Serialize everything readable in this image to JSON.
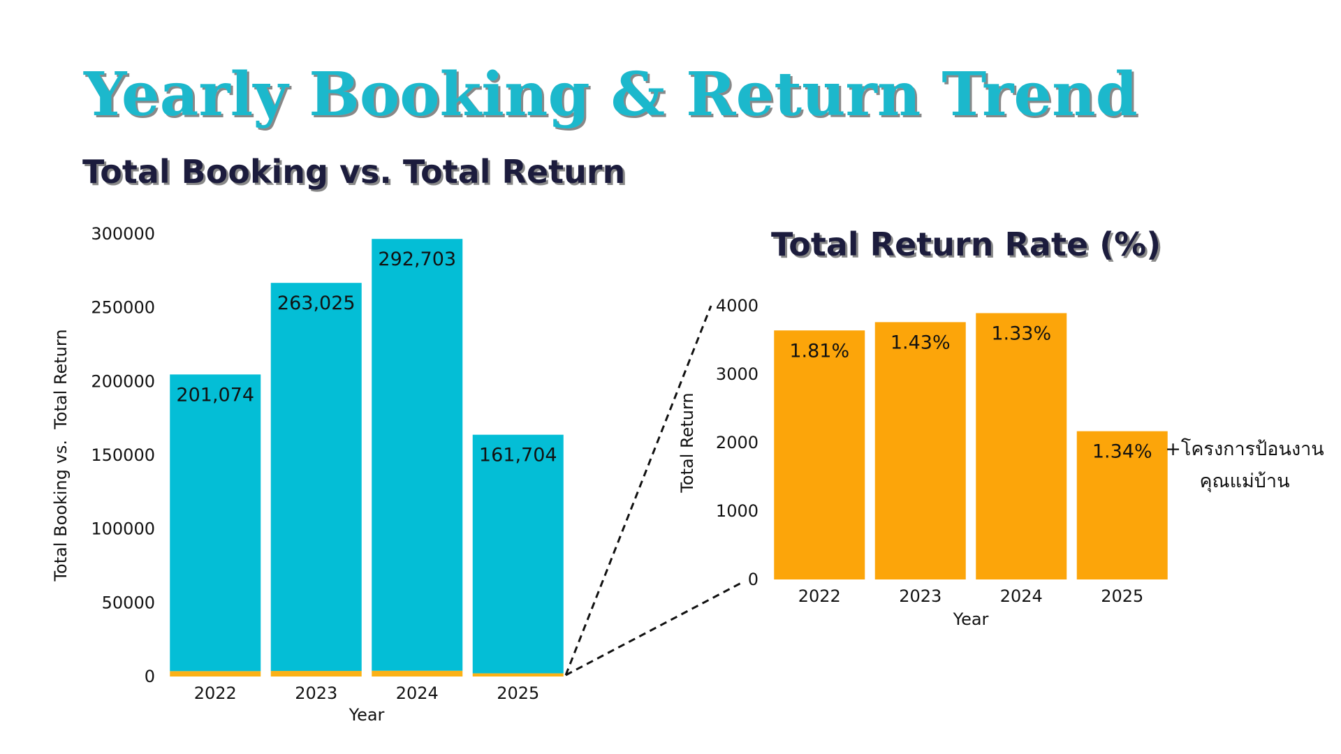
{
  "title": "Yearly Booking & Return Trend",
  "chart_data": [
    {
      "type": "stacked-bar",
      "title": "Total Booking vs. Total Return",
      "categories": [
        "2022",
        "2023",
        "2024",
        "2025"
      ],
      "x_label": "Year",
      "y_label": "Total Booking vs.  Total Return",
      "series": [
        {
          "color": "#fbb116",
          "values": [
            3640,
            3761,
            3893,
            2167
          ]
        },
        {
          "color": "#04bed6",
          "values": [
            201074,
            263025,
            292703,
            161704
          ],
          "value_labels": [
            "201,074",
            "263,025",
            "292,703",
            "161,704"
          ]
        }
      ],
      "ylim": [
        0,
        300000
      ],
      "yticks": [
        0,
        50000,
        100000,
        150000,
        200000,
        250000,
        300000
      ]
    },
    {
      "type": "bar",
      "title": "Total Return Rate (%)",
      "categories": [
        "2022",
        "2023",
        "2024",
        "2025"
      ],
      "x_label": "Year",
      "y_label": "Total Return",
      "values": [
        3640,
        3761,
        3893,
        2167
      ],
      "color": "#fca50a",
      "rates": [
        1.81,
        1.43,
        1.33,
        1.34
      ],
      "rate_labels": [
        "1.81%",
        "1.43%",
        "1.33%",
        "1.34%"
      ],
      "annotation": [
        "+โครงการป้อนงาน",
        "คุณแม่บ้าน"
      ],
      "ylim": [
        0,
        4000
      ],
      "yticks": [
        0,
        1000,
        2000,
        3000,
        4000
      ]
    }
  ]
}
